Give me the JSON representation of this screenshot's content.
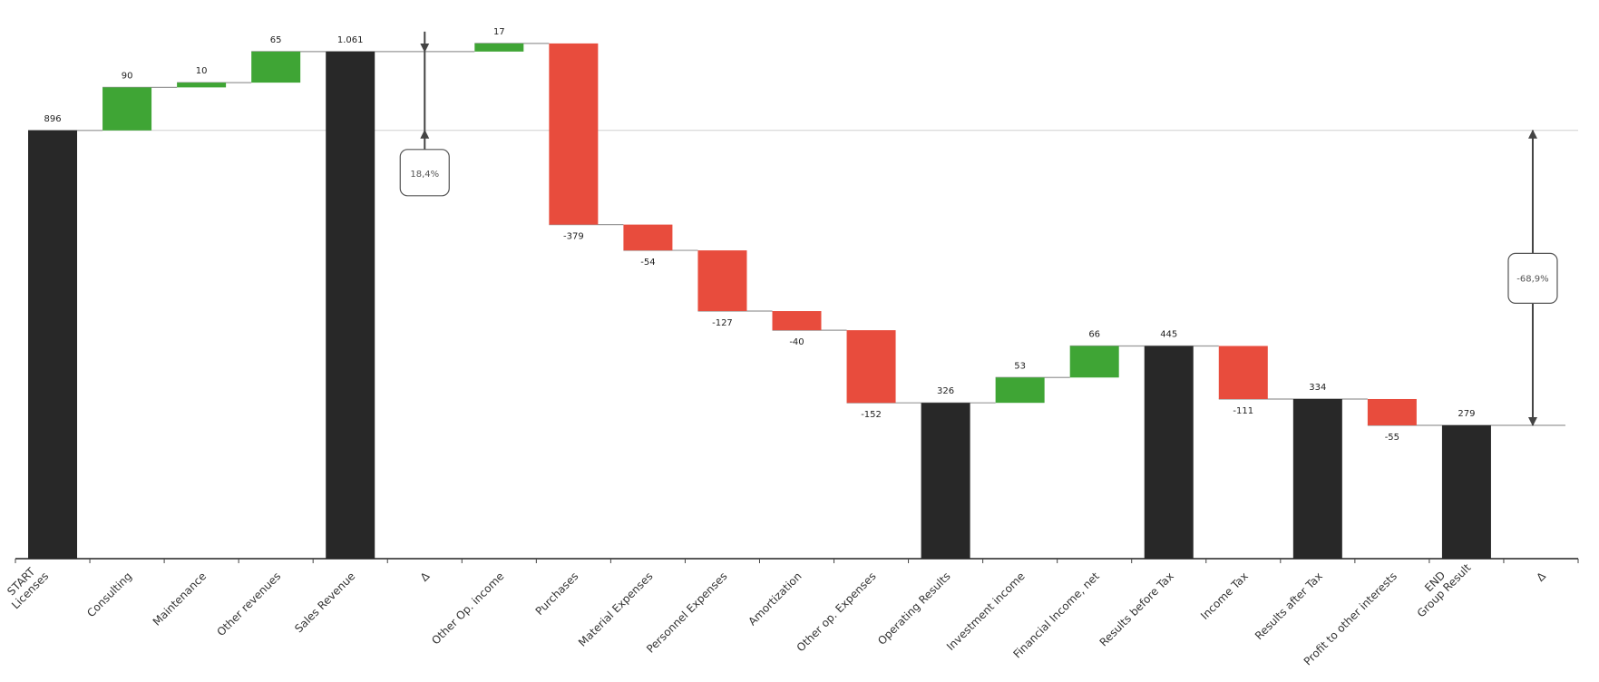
{
  "chart_data": {
    "type": "waterfall",
    "title": "",
    "colors": {
      "total": "#282828",
      "increase": "#3fa535",
      "decrease": "#e84c3d",
      "connector": "#999999",
      "axis": "#222222"
    },
    "categories": [
      "START\nLicenses",
      "Consulting",
      "Maintenance",
      "Other revenues",
      "Sales Revenue",
      "Δ",
      "Other Op. income",
      "Purchases",
      "Material Expenses",
      "Personnel Expenses",
      "Amortization",
      "Other op. Expenses",
      "Operating Results",
      "Investment income",
      "Financial Income, net",
      "Results before Tax",
      "Income Tax",
      "Results after Tax",
      "Profit to other interests",
      "END\nGroup Result",
      "Δ"
    ],
    "points": [
      {
        "kind": "total",
        "value": 896,
        "label": "896"
      },
      {
        "kind": "delta",
        "value": 90,
        "label": "90"
      },
      {
        "kind": "delta",
        "value": 10,
        "label": "10"
      },
      {
        "kind": "delta",
        "value": 65,
        "label": "65"
      },
      {
        "kind": "total",
        "value": 1061,
        "label": "1.061"
      },
      {
        "kind": "compare",
        "from": 1061,
        "to": 896,
        "label": "18,4%"
      },
      {
        "kind": "delta",
        "value": 17,
        "label": "17"
      },
      {
        "kind": "delta",
        "value": -379,
        "label": "-379"
      },
      {
        "kind": "delta",
        "value": -54,
        "label": "-54"
      },
      {
        "kind": "delta",
        "value": -127,
        "label": "-127"
      },
      {
        "kind": "delta",
        "value": -40,
        "label": "-40"
      },
      {
        "kind": "delta",
        "value": -152,
        "label": "-152"
      },
      {
        "kind": "total",
        "value": 326,
        "label": "326"
      },
      {
        "kind": "delta",
        "value": 53,
        "label": "53"
      },
      {
        "kind": "delta",
        "value": 66,
        "label": "66"
      },
      {
        "kind": "total",
        "value": 445,
        "label": "445"
      },
      {
        "kind": "delta",
        "value": -111,
        "label": "-111"
      },
      {
        "kind": "total",
        "value": 334,
        "label": "334"
      },
      {
        "kind": "delta",
        "value": -55,
        "label": "-55"
      },
      {
        "kind": "total",
        "value": 279,
        "label": "279"
      },
      {
        "kind": "compare",
        "from": 896,
        "to": 279,
        "label": "-68,9%"
      }
    ],
    "ylim": [
      0,
      1100
    ],
    "grid": false,
    "legend": "none"
  }
}
